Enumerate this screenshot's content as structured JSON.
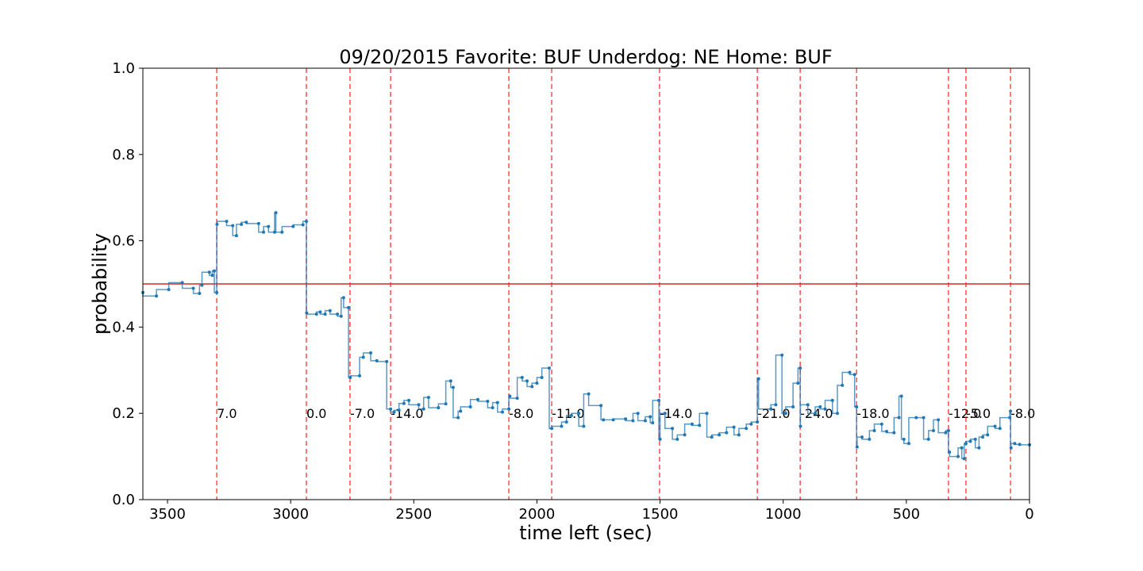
{
  "chart_data": {
    "type": "step-line",
    "title": "09/20/2015 Favorite: BUF Underdog: NE Home: BUF",
    "x_label": "time left (sec)",
    "y_label": "probability",
    "xlim": [
      3600,
      0
    ],
    "ylim": [
      0,
      1
    ],
    "xticks": [
      3500,
      3000,
      2500,
      2000,
      1500,
      1000,
      500,
      0
    ],
    "yticks": [
      {
        "value": 0,
        "label": "0.0"
      },
      {
        "value": 0.2,
        "label": "0.2"
      },
      {
        "value": 0.4,
        "label": "0.4"
      },
      {
        "value": 0.6,
        "label": "0.6"
      },
      {
        "value": 0.8,
        "label": "0.8"
      },
      {
        "value": 1,
        "label": "1.0"
      }
    ],
    "reference_line": {
      "value": 0.5,
      "color": "#d62728"
    },
    "event_lines": {
      "color": "#ff0000",
      "label_y": 0.2,
      "x": [
        3300,
        2936,
        2759,
        2594,
        2114,
        1940,
        1502,
        1105,
        931,
        702,
        329,
        258,
        77
      ],
      "labels": [
        "7.0",
        "0.0",
        "-7.0",
        "-14.0",
        "-8.0",
        "-11.0",
        "-14.0",
        "-21.0",
        "-24.0",
        "-18.0",
        "-12.0",
        "-5.0",
        "-8.0"
      ]
    },
    "x": [
      3600,
      3545,
      3495,
      3440,
      3395,
      3370,
      3360,
      3330,
      3318,
      3310,
      3300,
      3299,
      3260,
      3235,
      3220,
      3200,
      3180,
      3130,
      3110,
      3090,
      3065,
      3060,
      3035,
      2990,
      2950,
      2936,
      2935,
      2895,
      2880,
      2860,
      2840,
      2810,
      2795,
      2785,
      2765,
      2758,
      2720,
      2705,
      2675,
      2650,
      2610,
      2594,
      2580,
      2560,
      2540,
      2520,
      2480,
      2460,
      2440,
      2400,
      2370,
      2350,
      2340,
      2320,
      2310,
      2270,
      2240,
      2200,
      2180,
      2160,
      2140,
      2114,
      2110,
      2080,
      2060,
      2040,
      2020,
      2000,
      1980,
      1950,
      1940,
      1900,
      1880,
      1860,
      1830,
      1810,
      1790,
      1740,
      1730,
      1690,
      1640,
      1610,
      1590,
      1560,
      1540,
      1530,
      1505,
      1500,
      1480,
      1450,
      1430,
      1400,
      1370,
      1340,
      1310,
      1290,
      1260,
      1230,
      1200,
      1180,
      1150,
      1130,
      1105,
      1100,
      1050,
      1030,
      1005,
      990,
      960,
      940,
      931,
      930,
      900,
      870,
      850,
      830,
      800,
      780,
      760,
      730,
      710,
      702,
      700,
      680,
      650,
      630,
      600,
      580,
      550,
      530,
      520,
      510,
      490,
      460,
      430,
      410,
      390,
      370,
      340,
      329,
      325,
      290,
      275,
      265,
      258,
      240,
      220,
      205,
      190,
      170,
      140,
      120,
      80,
      77,
      75,
      60,
      40,
      0
    ],
    "series": [
      {
        "name": "probability",
        "color": "#1f77b4",
        "values": [
          0.48,
          0.472,
          0.487,
          0.503,
          0.49,
          0.478,
          0.497,
          0.527,
          0.52,
          0.53,
          0.48,
          0.638,
          0.645,
          0.635,
          0.612,
          0.638,
          0.643,
          0.64,
          0.62,
          0.633,
          0.62,
          0.665,
          0.62,
          0.633,
          0.637,
          0.645,
          0.433,
          0.43,
          0.435,
          0.43,
          0.438,
          0.43,
          0.425,
          0.468,
          0.445,
          0.283,
          0.287,
          0.33,
          0.34,
          0.322,
          0.32,
          0.21,
          0.203,
          0.207,
          0.223,
          0.23,
          0.22,
          0.21,
          0.237,
          0.213,
          0.222,
          0.275,
          0.26,
          0.19,
          0.205,
          0.215,
          0.232,
          0.228,
          0.213,
          0.225,
          0.203,
          0.21,
          0.24,
          0.235,
          0.283,
          0.275,
          0.262,
          0.27,
          0.283,
          0.305,
          0.165,
          0.17,
          0.18,
          0.195,
          0.2,
          0.17,
          0.245,
          0.218,
          0.185,
          0.185,
          0.187,
          0.183,
          0.2,
          0.183,
          0.192,
          0.178,
          0.23,
          0.14,
          0.2,
          0.165,
          0.14,
          0.15,
          0.175,
          0.172,
          0.2,
          0.145,
          0.15,
          0.155,
          0.168,
          0.15,
          0.165,
          0.175,
          0.18,
          0.28,
          0.21,
          0.22,
          0.335,
          0.2,
          0.215,
          0.27,
          0.305,
          0.17,
          0.22,
          0.2,
          0.215,
          0.21,
          0.23,
          0.2,
          0.265,
          0.295,
          0.29,
          0.215,
          0.122,
          0.145,
          0.14,
          0.16,
          0.175,
          0.158,
          0.155,
          0.19,
          0.24,
          0.14,
          0.13,
          0.19,
          0.19,
          0.14,
          0.16,
          0.185,
          0.155,
          0.16,
          0.11,
          0.1,
          0.12,
          0.095,
          0.13,
          0.135,
          0.14,
          0.12,
          0.145,
          0.15,
          0.17,
          0.165,
          0.19,
          0.205,
          0.12,
          0.13,
          0.128,
          0.127
        ]
      }
    ]
  }
}
